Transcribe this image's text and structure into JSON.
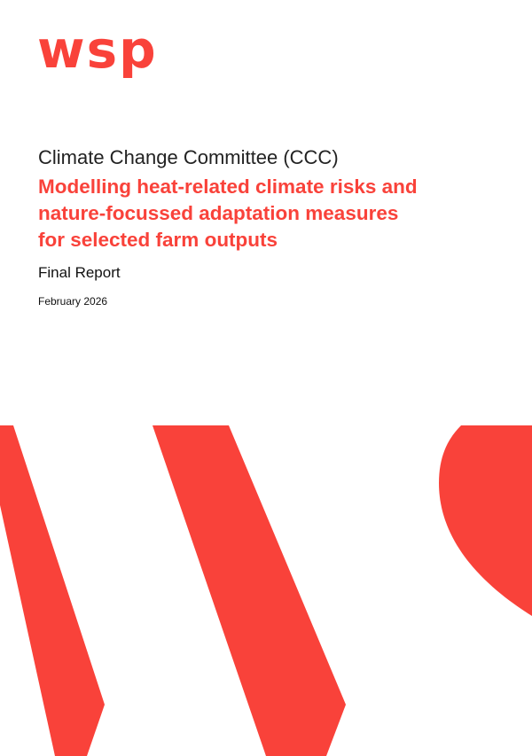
{
  "logo": "wsp",
  "header": {
    "organisation": "Climate Change Committee (CCC)",
    "title_lines": [
      "Modelling heat-related climate risks and",
      "nature-focussed adaptation measures",
      "for selected farm outputs"
    ],
    "report_type": "Final Report",
    "date": "February 2026"
  }
}
